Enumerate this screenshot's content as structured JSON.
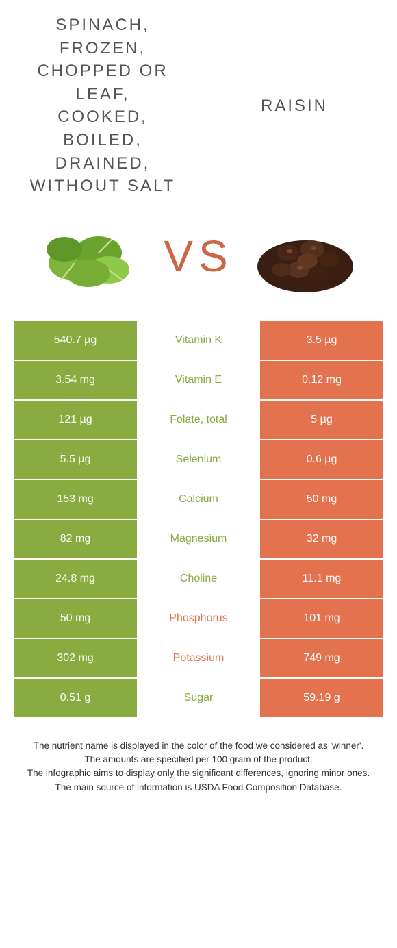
{
  "colors": {
    "spinach": "#8aab3f",
    "raisin": "#e3724f",
    "spinach_text": "#8aab3f",
    "raisin_text": "#e3724f",
    "cell_text": "#ffffff",
    "background": "#ffffff"
  },
  "header": {
    "left_title": "SPINACH, FROZEN, CHOPPED OR LEAF, COOKED, BOILED, DRAINED, WITHOUT SALT",
    "right_title": "RAISIN",
    "vs_label": "VS"
  },
  "rows": [
    {
      "nutrient": "Vitamin K",
      "left": "540.7 µg",
      "right": "3.5 µg",
      "winner": "left"
    },
    {
      "nutrient": "Vitamin E",
      "left": "3.54 mg",
      "right": "0.12 mg",
      "winner": "left"
    },
    {
      "nutrient": "Folate, total",
      "left": "121 µg",
      "right": "5 µg",
      "winner": "left"
    },
    {
      "nutrient": "Selenium",
      "left": "5.5 µg",
      "right": "0.6 µg",
      "winner": "left"
    },
    {
      "nutrient": "Calcium",
      "left": "153 mg",
      "right": "50 mg",
      "winner": "left"
    },
    {
      "nutrient": "Magnesium",
      "left": "82 mg",
      "right": "32 mg",
      "winner": "left"
    },
    {
      "nutrient": "Choline",
      "left": "24.8 mg",
      "right": "11.1 mg",
      "winner": "left"
    },
    {
      "nutrient": "Phosphorus",
      "left": "50 mg",
      "right": "101 mg",
      "winner": "right"
    },
    {
      "nutrient": "Potassium",
      "left": "302 mg",
      "right": "749 mg",
      "winner": "right"
    },
    {
      "nutrient": "Sugar",
      "left": "0.51 g",
      "right": "59.19 g",
      "winner": "left"
    }
  ],
  "footer": {
    "line1": "The nutrient name is displayed in the color of the food we considered as 'winner'.",
    "line2": "The amounts are specified per 100 gram of the product.",
    "line3": "The infographic aims to display only the significant differences, ignoring minor ones.",
    "line4": "The main source of information is USDA Food Composition Database."
  }
}
